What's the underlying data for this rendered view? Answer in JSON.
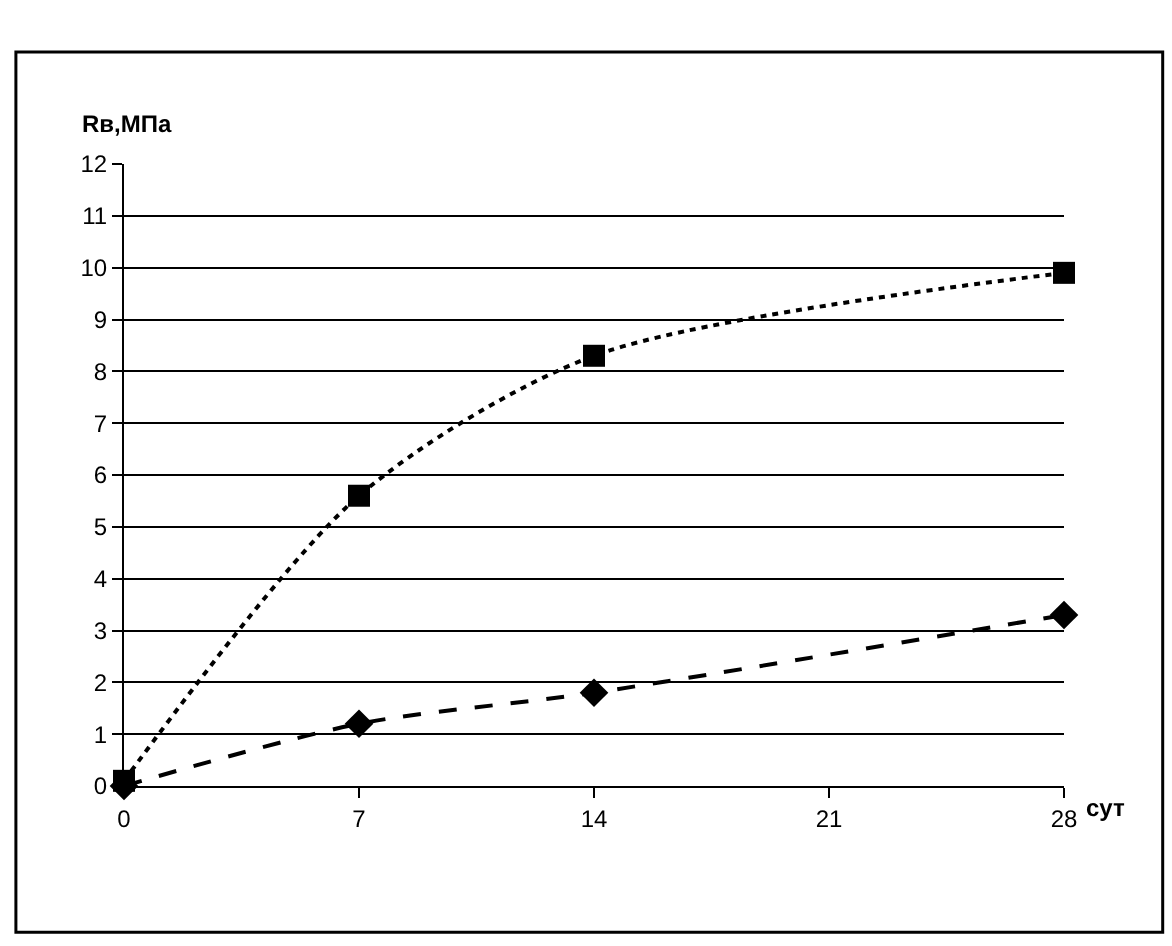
{
  "chart_data": {
    "type": "line",
    "ylabel": "Rв,МПа",
    "xlabel": "сут",
    "x": [
      0,
      7,
      14,
      28
    ],
    "series": [
      {
        "color": "#000000",
        "values": [
          0.1,
          5.6,
          8.3,
          9.9
        ],
        "marker": "square",
        "line_style": "dotted"
      },
      {
        "color": "#000000",
        "values": [
          0,
          1.2,
          1.8,
          3.3
        ],
        "marker": "diamond",
        "line_style": "dashed"
      }
    ],
    "xlim": [
      0,
      28
    ],
    "xticks": [
      0,
      7,
      14,
      21,
      28
    ],
    "ylim": [
      0,
      12
    ],
    "yticks": [
      0,
      1,
      2,
      3,
      4,
      5,
      6,
      7,
      8,
      9,
      10,
      11,
      12
    ],
    "grid": "y"
  }
}
